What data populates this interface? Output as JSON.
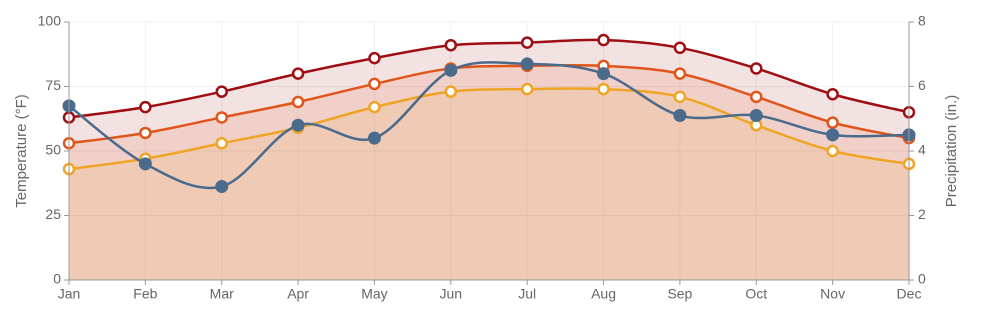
{
  "chart_data": {
    "type": "line",
    "categories": [
      "Jan",
      "Feb",
      "Mar",
      "Apr",
      "May",
      "Jun",
      "Jul",
      "Aug",
      "Sep",
      "Oct",
      "Nov",
      "Dec"
    ],
    "y_label": "Temperature (°F)",
    "y2_label": "Precipitation (in.)",
    "ylim": [
      0,
      100
    ],
    "yticks": [
      0,
      25,
      50,
      75,
      100
    ],
    "y2lim": [
      0,
      8
    ],
    "y2ticks": [
      0,
      2,
      4,
      6,
      8
    ],
    "grid": true,
    "series": [
      {
        "color": "#9e0e12",
        "area": true,
        "values": [
          63,
          67,
          73,
          80,
          86,
          91,
          92,
          93,
          90,
          82,
          72,
          65
        ]
      },
      {
        "color": "#e0561a",
        "area": true,
        "values": [
          53,
          57,
          63,
          69,
          76,
          82,
          83,
          83,
          80,
          71,
          61,
          55
        ]
      },
      {
        "color": "#f0a424",
        "area": true,
        "values": [
          43,
          47,
          53,
          59,
          67,
          73,
          74,
          74,
          71,
          60,
          50,
          45
        ]
      },
      {
        "color": "#4b6b8c",
        "axis": "y2",
        "values": [
          5.4,
          3.6,
          2.9,
          4.8,
          4.4,
          6.5,
          6.7,
          6.4,
          5.1,
          5.1,
          4.5,
          4.5
        ]
      }
    ]
  }
}
